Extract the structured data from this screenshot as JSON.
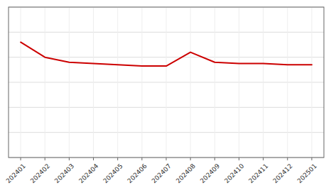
{
  "chart_data": {
    "type": "line",
    "categories": [
      "202401",
      "202402",
      "202403",
      "202404",
      "202405",
      "202406",
      "202407",
      "202408",
      "202409",
      "202410",
      "202411",
      "202412",
      "202501"
    ],
    "values": [
      92,
      80,
      76,
      75,
      74,
      73,
      73,
      84,
      76,
      75,
      75,
      74,
      74
    ],
    "color": "#cc0000",
    "ylim": [
      0,
      120
    ],
    "yticks": [
      0,
      20,
      40,
      60,
      80,
      100,
      120
    ],
    "grid": true,
    "tick_labels": "x"
  }
}
